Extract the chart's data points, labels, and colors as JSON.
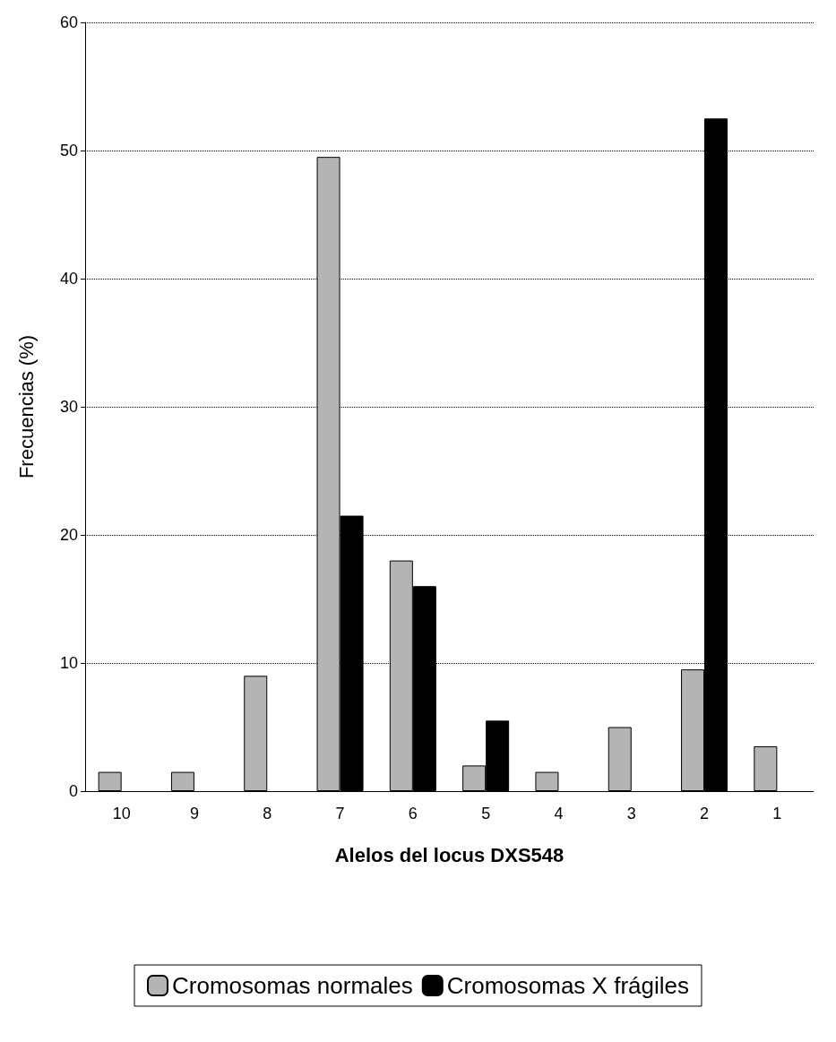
{
  "chart_data": {
    "type": "bar",
    "xlabel": "Alelos del locus DXS548",
    "ylabel": "Frecuencias (%)",
    "categories": [
      "10",
      "9",
      "8",
      "7",
      "6",
      "5",
      "4",
      "3",
      "2",
      "1"
    ],
    "series": [
      {
        "name": "Cromosomas normales",
        "color": "#b4b4b4",
        "values": [
          1.5,
          1.5,
          9,
          49.5,
          18,
          2,
          1.5,
          5,
          9.5,
          3.5
        ]
      },
      {
        "name": "Cromosomas X frágiles",
        "color": "#000000",
        "values": [
          null,
          null,
          null,
          21.5,
          16,
          5.5,
          null,
          null,
          52.5,
          null
        ]
      }
    ],
    "ylim": [
      0,
      60
    ],
    "yticks": [
      0,
      10,
      20,
      30,
      40,
      50,
      60
    ],
    "grid": "y",
    "legend": "bottom",
    "line_style": "dotted"
  }
}
